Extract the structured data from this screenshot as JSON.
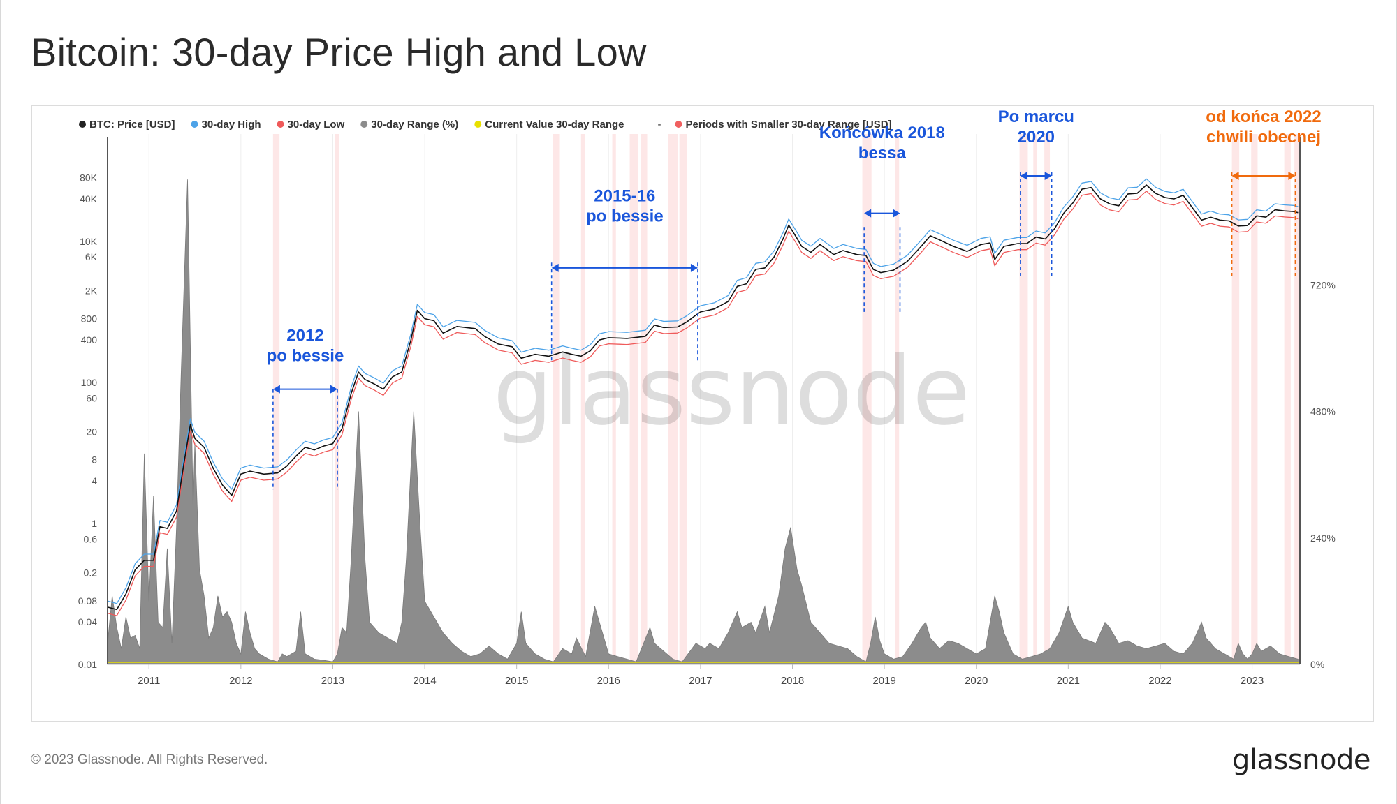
{
  "title": "Bitcoin: 30-day Price High and Low",
  "footer": {
    "copyright": "© 2023 Glassnode. All Rights Reserved.",
    "brand": "glassnode"
  },
  "watermark": "glassnode",
  "colors": {
    "price": "#111111",
    "high": "#4da3e8",
    "low": "#ef5a5a",
    "range": "#8c8c8c",
    "current": "#e8e000",
    "smaller": "#f06060",
    "band": "#fde3e3",
    "annotation_blue": "#1a56db",
    "annotation_orange": "#f06a0d"
  },
  "chart_data": {
    "type": "line",
    "legend": [
      {
        "label": "BTC: Price [USD]",
        "color": "#222222"
      },
      {
        "label": "30-day High",
        "color": "#4da3e8"
      },
      {
        "label": "30-day Low",
        "color": "#ef5a5a"
      },
      {
        "label": "30-day Range (%)",
        "color": "#8c8c8c"
      },
      {
        "label": "Current Value 30-day Range",
        "color": "#e8e000"
      },
      {
        "label": "Periods with Smaller 30-day Range [USD]",
        "color": "#f06060",
        "prefix": "-"
      }
    ],
    "x_range": [
      2010.55,
      2023.52
    ],
    "x_ticks": [
      "2011",
      "2012",
      "2013",
      "2014",
      "2015",
      "2016",
      "2017",
      "2018",
      "2019",
      "2020",
      "2021",
      "2022",
      "2023"
    ],
    "y_left": {
      "scale": "log",
      "range": [
        0.01,
        150000
      ],
      "ticks": [
        {
          "v": 0.01,
          "l": "0.01"
        },
        {
          "v": 0.04,
          "l": "0.04"
        },
        {
          "v": 0.08,
          "l": "0.08"
        },
        {
          "v": 0.2,
          "l": "0.2"
        },
        {
          "v": 0.6,
          "l": "0.6"
        },
        {
          "v": 1,
          "l": "1"
        },
        {
          "v": 4,
          "l": "4"
        },
        {
          "v": 8,
          "l": "8"
        },
        {
          "v": 20,
          "l": "20"
        },
        {
          "v": 60,
          "l": "60"
        },
        {
          "v": 100,
          "l": "100"
        },
        {
          "v": 400,
          "l": "400"
        },
        {
          "v": 800,
          "l": "800"
        },
        {
          "v": 2000,
          "l": "2K"
        },
        {
          "v": 6000,
          "l": "6K"
        },
        {
          "v": 10000,
          "l": "10K"
        },
        {
          "v": 40000,
          "l": "40K"
        },
        {
          "v": 80000,
          "l": "80K"
        }
      ]
    },
    "y_right": {
      "scale": "linear",
      "range": [
        0,
        960
      ],
      "ticks": [
        {
          "v": 0,
          "l": "0%"
        },
        {
          "v": 240,
          "l": "240%"
        },
        {
          "v": 480,
          "l": "480%"
        },
        {
          "v": 720,
          "l": "720%"
        }
      ]
    },
    "price": [
      [
        2010.55,
        0.065
      ],
      [
        2010.65,
        0.06
      ],
      [
        2010.75,
        0.1
      ],
      [
        2010.85,
        0.22
      ],
      [
        2010.95,
        0.3
      ],
      [
        2011.05,
        0.3
      ],
      [
        2011.12,
        0.9
      ],
      [
        2011.2,
        0.85
      ],
      [
        2011.3,
        1.5
      ],
      [
        2011.38,
        7
      ],
      [
        2011.45,
        25
      ],
      [
        2011.5,
        16
      ],
      [
        2011.6,
        12
      ],
      [
        2011.7,
        6
      ],
      [
        2011.8,
        3.5
      ],
      [
        2011.9,
        2.5
      ],
      [
        2012.0,
        5
      ],
      [
        2012.1,
        5.5
      ],
      [
        2012.25,
        5
      ],
      [
        2012.4,
        5.2
      ],
      [
        2012.5,
        6.5
      ],
      [
        2012.6,
        9
      ],
      [
        2012.7,
        12
      ],
      [
        2012.8,
        11
      ],
      [
        2012.9,
        12.5
      ],
      [
        2013.0,
        13.5
      ],
      [
        2013.1,
        22
      ],
      [
        2013.2,
        70
      ],
      [
        2013.28,
        140
      ],
      [
        2013.35,
        110
      ],
      [
        2013.45,
        95
      ],
      [
        2013.55,
        80
      ],
      [
        2013.65,
        120
      ],
      [
        2013.75,
        140
      ],
      [
        2013.85,
        400
      ],
      [
        2013.92,
        1050
      ],
      [
        2014.0,
        800
      ],
      [
        2014.1,
        750
      ],
      [
        2014.2,
        500
      ],
      [
        2014.35,
        620
      ],
      [
        2014.45,
        600
      ],
      [
        2014.55,
        580
      ],
      [
        2014.65,
        450
      ],
      [
        2014.8,
        350
      ],
      [
        2014.95,
        320
      ],
      [
        2015.05,
        220
      ],
      [
        2015.2,
        250
      ],
      [
        2015.35,
        235
      ],
      [
        2015.5,
        270
      ],
      [
        2015.6,
        250
      ],
      [
        2015.7,
        235
      ],
      [
        2015.8,
        280
      ],
      [
        2015.9,
        400
      ],
      [
        2016.0,
        430
      ],
      [
        2016.2,
        420
      ],
      [
        2016.4,
        450
      ],
      [
        2016.5,
        650
      ],
      [
        2016.6,
        600
      ],
      [
        2016.75,
        610
      ],
      [
        2016.85,
        720
      ],
      [
        2016.95,
        900
      ],
      [
        2017.0,
        1000
      ],
      [
        2017.15,
        1100
      ],
      [
        2017.3,
        1400
      ],
      [
        2017.4,
        2300
      ],
      [
        2017.5,
        2500
      ],
      [
        2017.6,
        4000
      ],
      [
        2017.7,
        4200
      ],
      [
        2017.8,
        6000
      ],
      [
        2017.9,
        11000
      ],
      [
        2017.96,
        17000
      ],
      [
        2018.05,
        11000
      ],
      [
        2018.1,
        8500
      ],
      [
        2018.2,
        7000
      ],
      [
        2018.3,
        9000
      ],
      [
        2018.45,
        6500
      ],
      [
        2018.55,
        7400
      ],
      [
        2018.7,
        6500
      ],
      [
        2018.8,
        6300
      ],
      [
        2018.88,
        4000
      ],
      [
        2018.96,
        3600
      ],
      [
        2019.1,
        3900
      ],
      [
        2019.25,
        5200
      ],
      [
        2019.4,
        8500
      ],
      [
        2019.5,
        12000
      ],
      [
        2019.6,
        10500
      ],
      [
        2019.75,
        8500
      ],
      [
        2019.9,
        7200
      ],
      [
        2020.05,
        9000
      ],
      [
        2020.15,
        9500
      ],
      [
        2020.2,
        5500
      ],
      [
        2020.3,
        8500
      ],
      [
        2020.45,
        9300
      ],
      [
        2020.55,
        9300
      ],
      [
        2020.65,
        11500
      ],
      [
        2020.75,
        10800
      ],
      [
        2020.85,
        15000
      ],
      [
        2020.95,
        25000
      ],
      [
        2021.05,
        35000
      ],
      [
        2021.15,
        55000
      ],
      [
        2021.25,
        58000
      ],
      [
        2021.35,
        40000
      ],
      [
        2021.45,
        34000
      ],
      [
        2021.55,
        32000
      ],
      [
        2021.65,
        47000
      ],
      [
        2021.75,
        48000
      ],
      [
        2021.85,
        63000
      ],
      [
        2021.95,
        48000
      ],
      [
        2022.05,
        42000
      ],
      [
        2022.15,
        40000
      ],
      [
        2022.25,
        45000
      ],
      [
        2022.35,
        30000
      ],
      [
        2022.45,
        20000
      ],
      [
        2022.55,
        22000
      ],
      [
        2022.65,
        20000
      ],
      [
        2022.75,
        19500
      ],
      [
        2022.85,
        16500
      ],
      [
        2022.95,
        16800
      ],
      [
        2023.05,
        23000
      ],
      [
        2023.15,
        22000
      ],
      [
        2023.25,
        28000
      ],
      [
        2023.35,
        27000
      ],
      [
        2023.45,
        26500
      ],
      [
        2023.5,
        25500
      ]
    ],
    "range_pct": [
      [
        2010.55,
        40
      ],
      [
        2010.6,
        130
      ],
      [
        2010.65,
        70
      ],
      [
        2010.7,
        30
      ],
      [
        2010.75,
        90
      ],
      [
        2010.8,
        50
      ],
      [
        2010.85,
        55
      ],
      [
        2010.9,
        30
      ],
      [
        2010.95,
        400
      ],
      [
        2011.0,
        120
      ],
      [
        2011.05,
        320
      ],
      [
        2011.1,
        80
      ],
      [
        2011.15,
        70
      ],
      [
        2011.2,
        220
      ],
      [
        2011.25,
        40
      ],
      [
        2011.3,
        260
      ],
      [
        2011.35,
        550
      ],
      [
        2011.42,
        920
      ],
      [
        2011.48,
        300
      ],
      [
        2011.5,
        420
      ],
      [
        2011.55,
        180
      ],
      [
        2011.6,
        130
      ],
      [
        2011.65,
        50
      ],
      [
        2011.7,
        70
      ],
      [
        2011.75,
        130
      ],
      [
        2011.8,
        90
      ],
      [
        2011.85,
        100
      ],
      [
        2011.9,
        80
      ],
      [
        2011.95,
        40
      ],
      [
        2012.0,
        20
      ],
      [
        2012.05,
        100
      ],
      [
        2012.1,
        60
      ],
      [
        2012.15,
        30
      ],
      [
        2012.2,
        20
      ],
      [
        2012.3,
        10
      ],
      [
        2012.4,
        5
      ],
      [
        2012.45,
        20
      ],
      [
        2012.5,
        15
      ],
      [
        2012.6,
        25
      ],
      [
        2012.65,
        100
      ],
      [
        2012.7,
        20
      ],
      [
        2012.8,
        10
      ],
      [
        2012.9,
        8
      ],
      [
        2013.0,
        5
      ],
      [
        2013.05,
        20
      ],
      [
        2013.1,
        70
      ],
      [
        2013.15,
        60
      ],
      [
        2013.2,
        200
      ],
      [
        2013.28,
        480
      ],
      [
        2013.35,
        200
      ],
      [
        2013.4,
        80
      ],
      [
        2013.5,
        60
      ],
      [
        2013.6,
        50
      ],
      [
        2013.7,
        40
      ],
      [
        2013.75,
        80
      ],
      [
        2013.8,
        200
      ],
      [
        2013.88,
        480
      ],
      [
        2013.95,
        260
      ],
      [
        2014.0,
        120
      ],
      [
        2014.1,
        90
      ],
      [
        2014.2,
        60
      ],
      [
        2014.3,
        40
      ],
      [
        2014.4,
        25
      ],
      [
        2014.5,
        15
      ],
      [
        2014.6,
        20
      ],
      [
        2014.7,
        35
      ],
      [
        2014.8,
        20
      ],
      [
        2014.9,
        10
      ],
      [
        2015.0,
        40
      ],
      [
        2015.05,
        100
      ],
      [
        2015.1,
        40
      ],
      [
        2015.2,
        20
      ],
      [
        2015.3,
        10
      ],
      [
        2015.4,
        5
      ],
      [
        2015.5,
        30
      ],
      [
        2015.6,
        20
      ],
      [
        2015.65,
        50
      ],
      [
        2015.75,
        15
      ],
      [
        2015.85,
        110
      ],
      [
        2015.9,
        80
      ],
      [
        2016.0,
        20
      ],
      [
        2016.1,
        15
      ],
      [
        2016.2,
        10
      ],
      [
        2016.3,
        5
      ],
      [
        2016.45,
        70
      ],
      [
        2016.5,
        40
      ],
      [
        2016.6,
        25
      ],
      [
        2016.7,
        10
      ],
      [
        2016.8,
        5
      ],
      [
        2016.95,
        40
      ],
      [
        2017.05,
        30
      ],
      [
        2017.1,
        40
      ],
      [
        2017.2,
        30
      ],
      [
        2017.3,
        60
      ],
      [
        2017.4,
        100
      ],
      [
        2017.45,
        70
      ],
      [
        2017.55,
        80
      ],
      [
        2017.6,
        60
      ],
      [
        2017.7,
        110
      ],
      [
        2017.75,
        60
      ],
      [
        2017.85,
        130
      ],
      [
        2017.92,
        220
      ],
      [
        2017.98,
        260
      ],
      [
        2018.05,
        180
      ],
      [
        2018.1,
        150
      ],
      [
        2018.2,
        80
      ],
      [
        2018.3,
        60
      ],
      [
        2018.4,
        40
      ],
      [
        2018.5,
        35
      ],
      [
        2018.6,
        30
      ],
      [
        2018.7,
        15
      ],
      [
        2018.8,
        5
      ],
      [
        2018.85,
        40
      ],
      [
        2018.9,
        90
      ],
      [
        2018.95,
        45
      ],
      [
        2019.0,
        20
      ],
      [
        2019.1,
        10
      ],
      [
        2019.2,
        15
      ],
      [
        2019.3,
        40
      ],
      [
        2019.4,
        70
      ],
      [
        2019.45,
        80
      ],
      [
        2019.5,
        50
      ],
      [
        2019.6,
        30
      ],
      [
        2019.7,
        45
      ],
      [
        2019.8,
        40
      ],
      [
        2019.9,
        30
      ],
      [
        2020.0,
        20
      ],
      [
        2020.1,
        30
      ],
      [
        2020.2,
        130
      ],
      [
        2020.25,
        100
      ],
      [
        2020.3,
        60
      ],
      [
        2020.4,
        20
      ],
      [
        2020.5,
        10
      ],
      [
        2020.6,
        15
      ],
      [
        2020.7,
        20
      ],
      [
        2020.8,
        30
      ],
      [
        2020.9,
        60
      ],
      [
        2021.0,
        110
      ],
      [
        2021.05,
        80
      ],
      [
        2021.15,
        50
      ],
      [
        2021.3,
        40
      ],
      [
        2021.4,
        80
      ],
      [
        2021.45,
        70
      ],
      [
        2021.55,
        40
      ],
      [
        2021.65,
        45
      ],
      [
        2021.75,
        35
      ],
      [
        2021.85,
        30
      ],
      [
        2021.95,
        35
      ],
      [
        2022.05,
        40
      ],
      [
        2022.15,
        25
      ],
      [
        2022.25,
        20
      ],
      [
        2022.35,
        40
      ],
      [
        2022.45,
        80
      ],
      [
        2022.5,
        50
      ],
      [
        2022.6,
        30
      ],
      [
        2022.7,
        20
      ],
      [
        2022.8,
        10
      ],
      [
        2022.85,
        40
      ],
      [
        2022.9,
        20
      ],
      [
        2022.95,
        10
      ],
      [
        2023.0,
        20
      ],
      [
        2023.05,
        40
      ],
      [
        2023.1,
        25
      ],
      [
        2023.2,
        35
      ],
      [
        2023.3,
        20
      ],
      [
        2023.4,
        15
      ],
      [
        2023.5,
        10
      ]
    ],
    "smaller_range_bands": [
      [
        2012.35,
        2012.42
      ],
      [
        2013.02,
        2013.07
      ],
      [
        2015.39,
        2015.47
      ],
      [
        2015.7,
        2015.74
      ],
      [
        2016.04,
        2016.08
      ],
      [
        2016.23,
        2016.32
      ],
      [
        2016.35,
        2016.42
      ],
      [
        2016.65,
        2016.75
      ],
      [
        2016.77,
        2016.85
      ],
      [
        2018.76,
        2018.86
      ],
      [
        2019.12,
        2019.16
      ],
      [
        2020.47,
        2020.56
      ],
      [
        2020.62,
        2020.66
      ],
      [
        2020.74,
        2020.8
      ],
      [
        2022.78,
        2022.86
      ],
      [
        2022.99,
        2023.06
      ],
      [
        2023.35,
        2023.42
      ],
      [
        2023.46,
        2023.52
      ]
    ],
    "current_value_30day_range_pct": 4,
    "annotations": [
      {
        "text": [
          "2012",
          "po bessie"
        ],
        "color": "blue",
        "x1": 2012.35,
        "x2": 2013.05,
        "label_y": 40,
        "arrow_y": 80,
        "vline_bottom": 3
      },
      {
        "text": [
          "2015-16",
          "po bessie"
        ],
        "color": "blue",
        "x1": 2015.38,
        "x2": 2016.97,
        "label_y": 19000,
        "arrow_y": 4200,
        "vline_top": 5000,
        "vline_bottom": 200
      },
      {
        "text": [
          "Końcówka 2018",
          "bessa"
        ],
        "color": "blue",
        "x1": 2018.78,
        "x2": 2019.17,
        "label_y": 150000,
        "arrow_y": 25000,
        "vline_top": 16000,
        "vline_bottom": 1000
      },
      {
        "text": [
          "Po marcu",
          "2020"
        ],
        "color": "blue",
        "x1": 2020.48,
        "x2": 2020.82,
        "label_y": 1000000.0,
        "arrow_y": 130000,
        "vline_top": 150000,
        "vline_bottom": 3000
      },
      {
        "text": [
          "od końca 2022",
          "chwili obecnej"
        ],
        "color": "orange",
        "x1": 2022.78,
        "x2": 2023.47,
        "label_y": 1000000.0,
        "arrow_y": 130000,
        "vline_top": 150000,
        "vline_bottom": 3000
      }
    ]
  }
}
